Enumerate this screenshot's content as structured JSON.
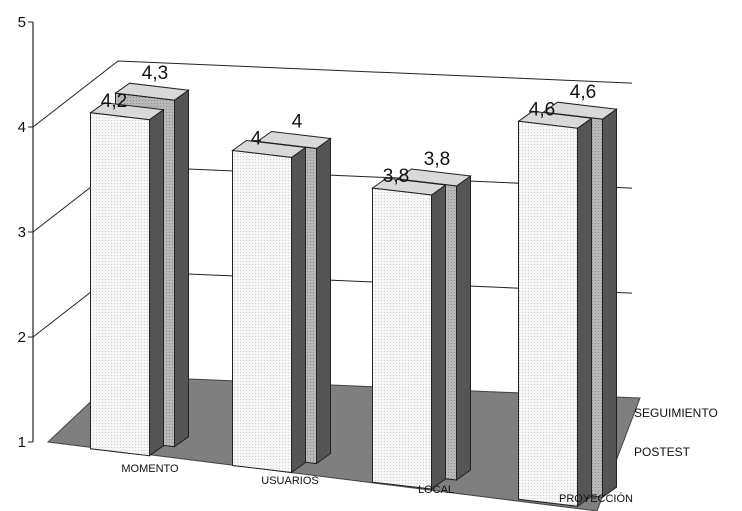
{
  "chart_data": {
    "type": "bar",
    "title": "",
    "xlabel": "",
    "ylabel": "",
    "ylim": [
      1,
      5
    ],
    "y_ticks": [
      "1",
      "2",
      "3",
      "4",
      "5"
    ],
    "categories": [
      "MOMENTO",
      "USUARIOS",
      "LOCAL",
      "PROYECCIÓN"
    ],
    "series": [
      {
        "name": "POSTEST",
        "values": [
          4.2,
          4,
          3.8,
          4.6
        ],
        "labels": [
          "4,2",
          "4",
          "3,8",
          "4,6"
        ],
        "color": "#f7f7f7"
      },
      {
        "name": "SEGUIMIENTO",
        "values": [
          4.3,
          4,
          3.8,
          4.6
        ],
        "labels": [
          "4,3",
          "4",
          "3,8",
          "4,6"
        ],
        "color": "#b8b8b8"
      }
    ],
    "grid": true,
    "floor_color": "#7f7f7f"
  }
}
